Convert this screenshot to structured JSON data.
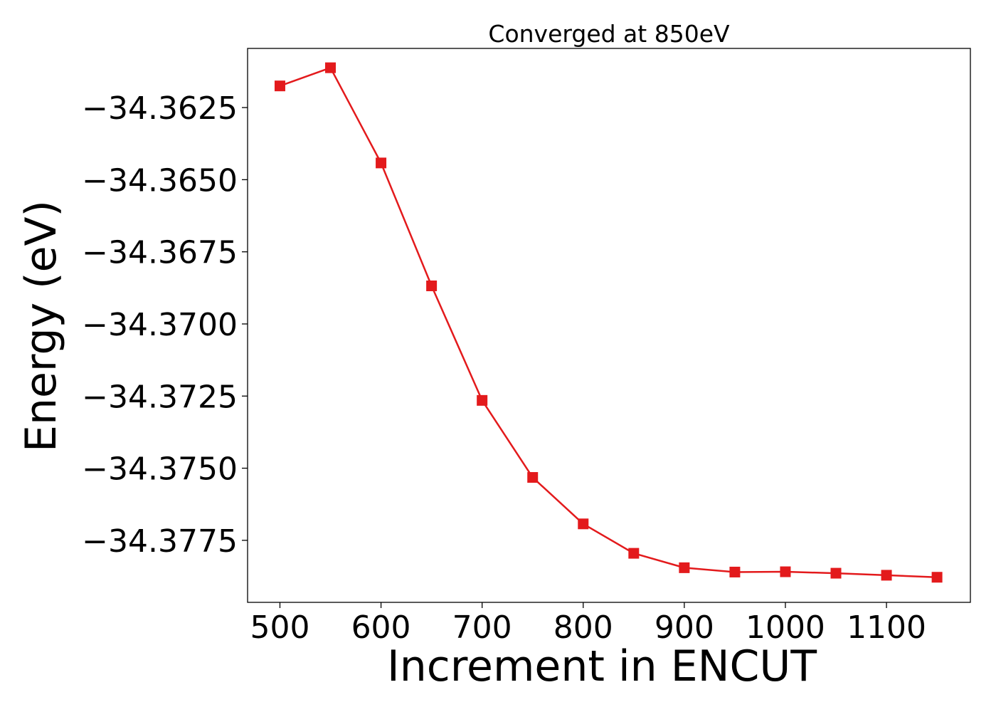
{
  "chart_data": {
    "type": "line",
    "title": "Converged at 850eV",
    "xlabel": "Increment in ENCUT",
    "ylabel": "Energy (eV)",
    "xlim": [
      468,
      1183
    ],
    "ylim": [
      -34.37965,
      -34.36045
    ],
    "xticks": [
      500,
      600,
      700,
      800,
      900,
      1000,
      1100
    ],
    "xtick_labels": [
      "500",
      "600",
      "700",
      "800",
      "900",
      "1000",
      "1100"
    ],
    "yticks": [
      -34.3625,
      -34.365,
      -34.3675,
      -34.37,
      -34.3725,
      -34.375,
      -34.3775
    ],
    "ytick_labels": [
      "−34.3625",
      "−34.3650",
      "−34.3675",
      "−34.3700",
      "−34.3725",
      "−34.3750",
      "−34.3775"
    ],
    "grid": false,
    "series": [
      {
        "color": "#e31a1c",
        "marker": "square",
        "x": [
          500,
          550,
          600,
          650,
          700,
          750,
          800,
          850,
          900,
          950,
          1000,
          1050,
          1100,
          1150
        ],
        "y": [
          -34.36175,
          -34.36112,
          -34.36442,
          -34.36868,
          -34.37265,
          -34.37532,
          -34.37693,
          -34.37795,
          -34.37845,
          -34.3786,
          -34.37859,
          -34.37864,
          -34.37871,
          -34.37878
        ]
      }
    ]
  }
}
